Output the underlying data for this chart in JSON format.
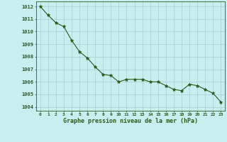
{
  "x": [
    0,
    1,
    2,
    3,
    4,
    5,
    6,
    7,
    8,
    9,
    10,
    11,
    12,
    13,
    14,
    15,
    16,
    17,
    18,
    19,
    20,
    21,
    22,
    23
  ],
  "y": [
    1012.0,
    1011.3,
    1010.7,
    1010.4,
    1009.3,
    1008.4,
    1007.9,
    1007.2,
    1006.6,
    1006.5,
    1006.0,
    1006.2,
    1006.2,
    1006.2,
    1006.0,
    1006.0,
    1005.7,
    1005.4,
    1005.3,
    1005.8,
    1005.7,
    1005.4,
    1005.1,
    1004.4
  ],
  "line_color": "#2d5a1b",
  "marker": "*",
  "bg_color": "#c8eef0",
  "grid_color": "#a0c8c8",
  "text_color": "#2d5a1b",
  "ylabel_ticks": [
    1004,
    1005,
    1006,
    1007,
    1008,
    1009,
    1010,
    1011,
    1012
  ],
  "xlabel_label": "Graphe pression niveau de la mer (hPa)",
  "ylim": [
    1003.7,
    1012.4
  ],
  "xlim": [
    -0.5,
    23.5
  ],
  "xtick_labels": [
    "0",
    "1",
    "2",
    "3",
    "4",
    "5",
    "6",
    "7",
    "8",
    "9",
    "10",
    "11",
    "12",
    "13",
    "14",
    "15",
    "16",
    "17",
    "18",
    "19",
    "20",
    "21",
    "22",
    "23"
  ]
}
